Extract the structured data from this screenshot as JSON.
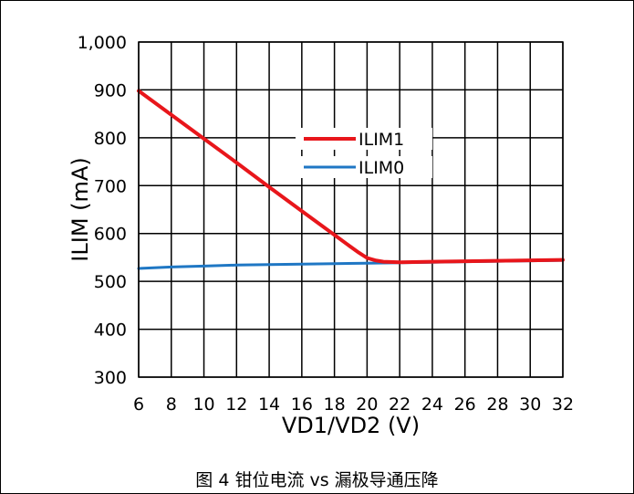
{
  "caption": "图 4 钳位电流 vs 漏极导通压降",
  "chart_data": {
    "type": "line",
    "xlabel": "VD1/VD2 (V)",
    "ylabel": "ILIM (mA)",
    "xlim": [
      6,
      32
    ],
    "ylim": [
      300,
      1000
    ],
    "x_ticks": [
      6,
      8,
      10,
      12,
      14,
      16,
      18,
      20,
      22,
      24,
      26,
      28,
      30,
      32
    ],
    "x_tick_labels": [
      "6",
      "8",
      "10",
      "12",
      "14",
      "16",
      "18",
      "20",
      "22",
      "24",
      "26",
      "28",
      "30",
      "32"
    ],
    "y_ticks": [
      300,
      400,
      500,
      600,
      700,
      800,
      900,
      1000
    ],
    "y_tick_labels": [
      "300",
      "400",
      "500",
      "600",
      "700",
      "800",
      "900",
      "1,000"
    ],
    "grid": true,
    "legend_position": "center",
    "series": [
      {
        "name": "ILIM1",
        "color": "#e8161b",
        "x": [
          6,
          8,
          10,
          12,
          14,
          16,
          18,
          19,
          19.5,
          20,
          20.5,
          21,
          22,
          24,
          26,
          28,
          30,
          32
        ],
        "y": [
          898,
          848,
          798,
          748,
          697,
          647,
          597,
          572,
          560,
          549,
          544,
          541,
          540,
          541,
          542,
          543,
          544,
          545
        ]
      },
      {
        "name": "ILIM0",
        "color": "#1f77c4",
        "x": [
          6,
          8,
          10,
          12,
          14,
          16,
          18,
          20,
          22,
          24,
          26,
          28,
          30,
          32
        ],
        "y": [
          527,
          530,
          532,
          534,
          535,
          536,
          537,
          538,
          539,
          540,
          541,
          542,
          543,
          544
        ]
      }
    ]
  }
}
